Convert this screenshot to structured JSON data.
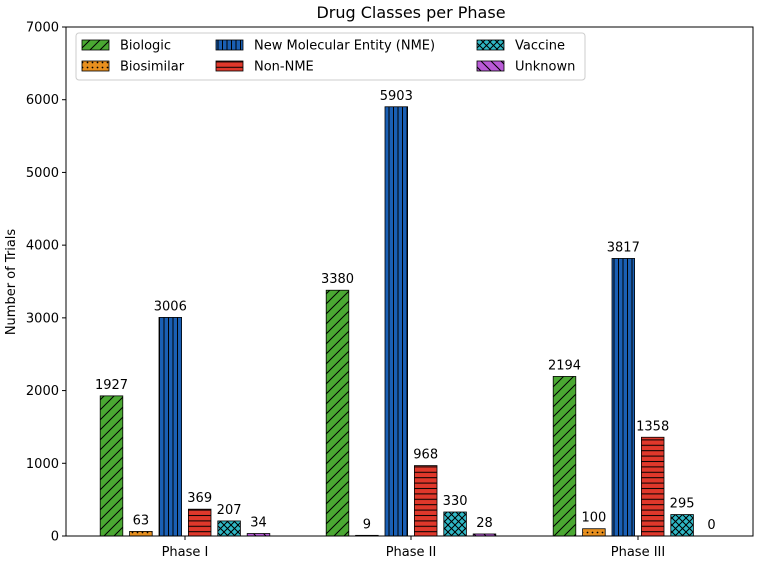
{
  "chart_data": {
    "type": "bar",
    "title": "Drug Classes per Phase",
    "xlabel": "",
    "ylabel": "Number of Trials",
    "ylim": [
      0,
      7000
    ],
    "yticks": [
      0,
      1000,
      2000,
      3000,
      4000,
      5000,
      6000,
      7000
    ],
    "categories": [
      "Phase I",
      "Phase II",
      "Phase III"
    ],
    "legend_location": "top-left",
    "series": [
      {
        "name": "Biologic",
        "values": [
          1927,
          3380,
          2194
        ],
        "color": "#4aa832",
        "hatch": "diagonal"
      },
      {
        "name": "Biosimilar",
        "values": [
          63,
          9,
          100
        ],
        "color": "#e8901f",
        "hatch": "dots"
      },
      {
        "name": "New Molecular Entity (NME)",
        "values": [
          3006,
          5903,
          3817
        ],
        "color": "#1a5fb4",
        "hatch": "vertical"
      },
      {
        "name": "Non-NME",
        "values": [
          369,
          968,
          1358
        ],
        "color": "#e0382b",
        "hatch": "horizontal"
      },
      {
        "name": "Vaccine",
        "values": [
          207,
          330,
          295
        ],
        "color": "#2fb7c4",
        "hatch": "crosshatch"
      },
      {
        "name": "Unknown",
        "values": [
          34,
          28,
          0
        ],
        "color": "#b85ad6",
        "hatch": "backdiagonal"
      }
    ]
  }
}
